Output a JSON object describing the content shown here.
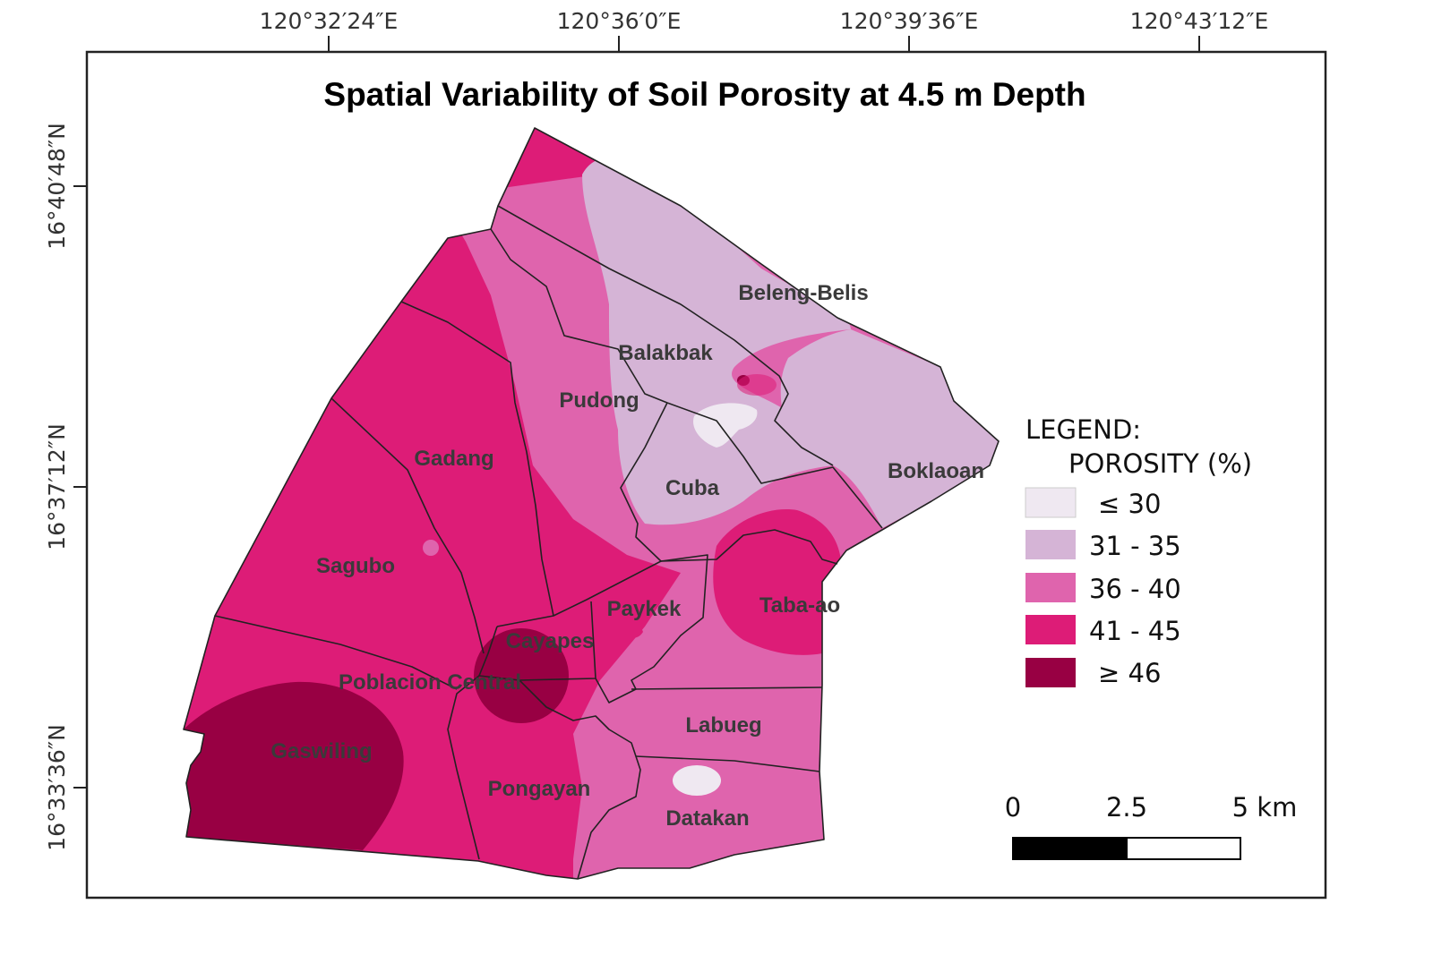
{
  "map": {
    "title": "Spatial Variability of Soil Porosity at 4.5 m Depth",
    "longitude_ticks": [
      "120°32′24″E",
      "120°36′0″E",
      "120°39′36″E",
      "120°43′12″E"
    ],
    "latitude_ticks": [
      "16°40′48″N",
      "16°37′12″N",
      "16°33′36″N"
    ],
    "places": {
      "beleng_belis": "Beleng-Belis",
      "balakbak": "Balakbak",
      "pudong": "Pudong",
      "gadang": "Gadang",
      "cuba": "Cuba",
      "boklaoan": "Boklaoan",
      "sagubo": "Sagubo",
      "taba_ao": "Taba-ao",
      "paykek": "Paykek",
      "cayapes": "Cayapes",
      "poblacion_central": "Poblacion Central",
      "labueg": "Labueg",
      "gaswiling": "Gaswiling",
      "pongayan": "Pongayan",
      "datakan": "Datakan"
    }
  },
  "legend": {
    "heading": "LEGEND:",
    "subheading": "POROSITY (%)",
    "classes": [
      {
        "label": "≤ 30",
        "color": "#efe8f1"
      },
      {
        "label": "31 - 35",
        "color": "#d5b4d6"
      },
      {
        "label": "36 - 40",
        "color": "#df64ad"
      },
      {
        "label": "41 - 45",
        "color": "#dd1c77"
      },
      {
        "label": "≥ 46",
        "color": "#980043"
      }
    ]
  },
  "scale_bar": {
    "label_0": "0",
    "label_mid": "2.5",
    "label_end": "5 km"
  }
}
